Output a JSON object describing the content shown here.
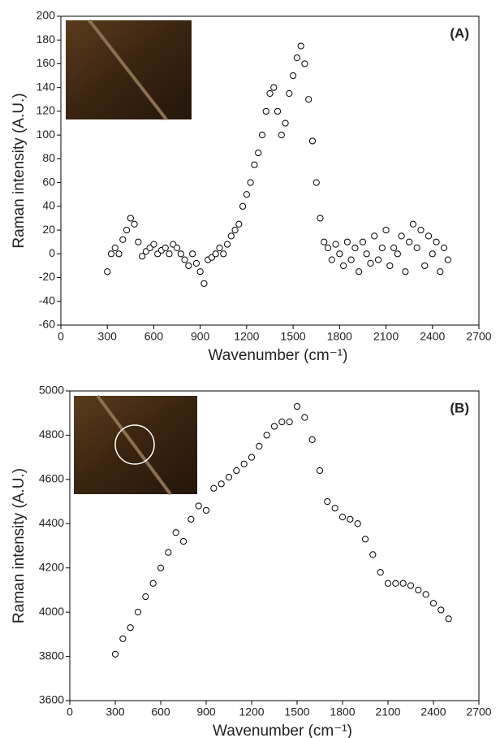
{
  "chart_data": [
    {
      "type": "scatter",
      "panel_label": "(A)",
      "xlabel": "Wavenumber (cm⁻¹)",
      "ylabel": "Raman intensity (A.U.)",
      "color": "#000000",
      "xlim": [
        0,
        2700
      ],
      "xticks": [
        0,
        300,
        600,
        900,
        1200,
        1500,
        1800,
        2100,
        2400,
        2700
      ],
      "ylim": [
        -60,
        200
      ],
      "yticks": [
        -60,
        -40,
        -20,
        0,
        20,
        40,
        60,
        80,
        100,
        120,
        140,
        160,
        180,
        200
      ],
      "x": [
        300,
        325,
        350,
        375,
        400,
        425,
        450,
        475,
        500,
        525,
        550,
        575,
        600,
        625,
        650,
        675,
        700,
        725,
        750,
        775,
        800,
        825,
        850,
        875,
        900,
        925,
        950,
        975,
        1000,
        1025,
        1050,
        1075,
        1100,
        1125,
        1150,
        1175,
        1200,
        1225,
        1250,
        1275,
        1300,
        1325,
        1350,
        1375,
        1400,
        1425,
        1450,
        1475,
        1500,
        1525,
        1550,
        1575,
        1600,
        1625,
        1650,
        1675,
        1700,
        1725,
        1750,
        1775,
        1800,
        1825,
        1850,
        1875,
        1900,
        1925,
        1950,
        1975,
        2000,
        2025,
        2050,
        2075,
        2100,
        2125,
        2150,
        2175,
        2200,
        2225,
        2250,
        2275,
        2300,
        2325,
        2350,
        2375,
        2400,
        2425,
        2450,
        2475,
        2500
      ],
      "values": [
        -15,
        0,
        5,
        0,
        12,
        20,
        30,
        25,
        10,
        -2,
        2,
        5,
        8,
        0,
        3,
        5,
        0,
        8,
        5,
        0,
        -5,
        -10,
        0,
        -8,
        -15,
        -25,
        -5,
        -3,
        0,
        5,
        0,
        8,
        15,
        20,
        25,
        40,
        50,
        60,
        75,
        85,
        100,
        120,
        135,
        140,
        120,
        100,
        110,
        135,
        150,
        165,
        175,
        160,
        130,
        95,
        60,
        30,
        10,
        5,
        -5,
        8,
        0,
        -10,
        10,
        -5,
        5,
        -15,
        10,
        0,
        -8,
        15,
        -5,
        5,
        20,
        -10,
        5,
        0,
        15,
        -15,
        10,
        25,
        5,
        20,
        -10,
        15,
        0,
        10,
        -15,
        5,
        -5
      ]
    },
    {
      "type": "scatter",
      "panel_label": "(B)",
      "xlabel": "Wavenumber (cm⁻¹)",
      "ylabel": "Raman intensity (A.U.)",
      "color": "#000000",
      "xlim": [
        0,
        2700
      ],
      "xticks": [
        0,
        300,
        600,
        900,
        1200,
        1500,
        1800,
        2100,
        2400,
        2700
      ],
      "ylim": [
        3600,
        5000
      ],
      "yticks": [
        3600,
        3800,
        4000,
        4200,
        4400,
        4600,
        4800,
        5000
      ],
      "x": [
        300,
        350,
        400,
        450,
        500,
        550,
        600,
        650,
        700,
        750,
        800,
        850,
        900,
        950,
        1000,
        1050,
        1100,
        1150,
        1200,
        1250,
        1300,
        1350,
        1400,
        1450,
        1500,
        1550,
        1600,
        1650,
        1700,
        1750,
        1800,
        1850,
        1900,
        1950,
        2000,
        2050,
        2100,
        2150,
        2200,
        2250,
        2300,
        2350,
        2400,
        2450,
        2500
      ],
      "values": [
        3810,
        3880,
        3930,
        4000,
        4070,
        4130,
        4200,
        4270,
        4360,
        4320,
        4420,
        4480,
        4460,
        4560,
        4580,
        4610,
        4640,
        4670,
        4700,
        4750,
        4800,
        4840,
        4860,
        4860,
        4930,
        4880,
        4780,
        4640,
        4500,
        4470,
        4430,
        4420,
        4400,
        4330,
        4260,
        4180,
        4130,
        4130,
        4130,
        4120,
        4100,
        4080,
        4040,
        4010,
        3970
      ]
    }
  ]
}
